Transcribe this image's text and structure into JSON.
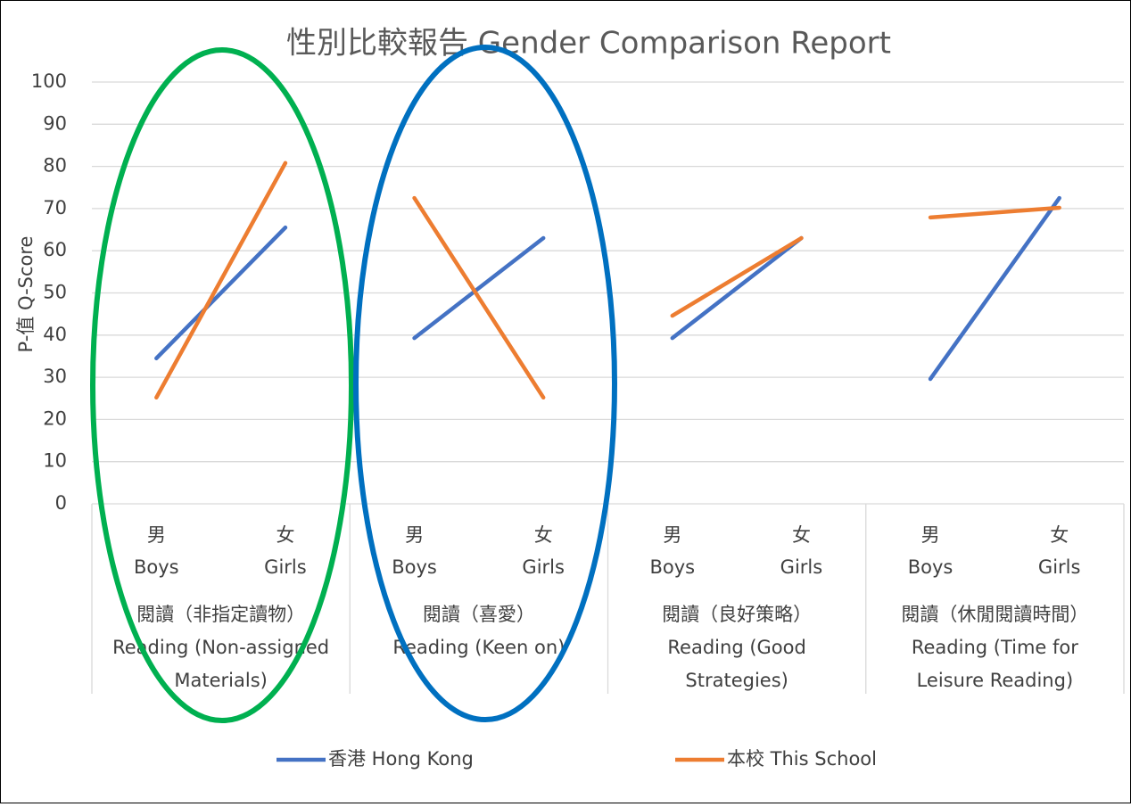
{
  "chart_data": {
    "type": "line",
    "title": "性別比較報告 Gender Comparison Report",
    "y_label": "P-值 Q-Score",
    "ylim": [
      0,
      100
    ],
    "yticks": [
      0,
      10,
      20,
      30,
      40,
      50,
      60,
      70,
      80,
      90,
      100
    ],
    "grid": true,
    "legend": "bottom",
    "groups": [
      {
        "label": [
          "閱讀（非指定讀物）",
          "Reading (Non-assigned",
          "Materials)"
        ],
        "categories": [
          [
            "男",
            "Boys"
          ],
          [
            "女",
            "Girls"
          ]
        ]
      },
      {
        "label": [
          "閱讀（喜愛）",
          "Reading (Keen on)"
        ],
        "categories": [
          [
            "男",
            "Boys"
          ],
          [
            "女",
            "Girls"
          ]
        ]
      },
      {
        "label": [
          "閱讀（良好策略）",
          "Reading (Good",
          "Strategies)"
        ],
        "categories": [
          [
            "男",
            "Boys"
          ],
          [
            "女",
            "Girls"
          ]
        ]
      },
      {
        "label": [
          "閱讀（休閒閱讀時間）",
          "Reading (Time for",
          "Leisure Reading)"
        ],
        "categories": [
          [
            "男",
            "Boys"
          ],
          [
            "女",
            "Girls"
          ]
        ]
      }
    ],
    "series": [
      {
        "name": "香港 Hong Kong",
        "color": "#4472c4",
        "values": [
          [
            34.5,
            65.5
          ],
          [
            39.3,
            63
          ],
          [
            39.3,
            63
          ],
          [
            29.6,
            72.5
          ]
        ]
      },
      {
        "name": "本校 This School",
        "color": "#ed7d31",
        "values": [
          [
            25.2,
            80.8
          ],
          [
            72.5,
            25.2
          ],
          [
            44.6,
            63
          ],
          [
            67.9,
            70.2
          ]
        ]
      }
    ]
  }
}
